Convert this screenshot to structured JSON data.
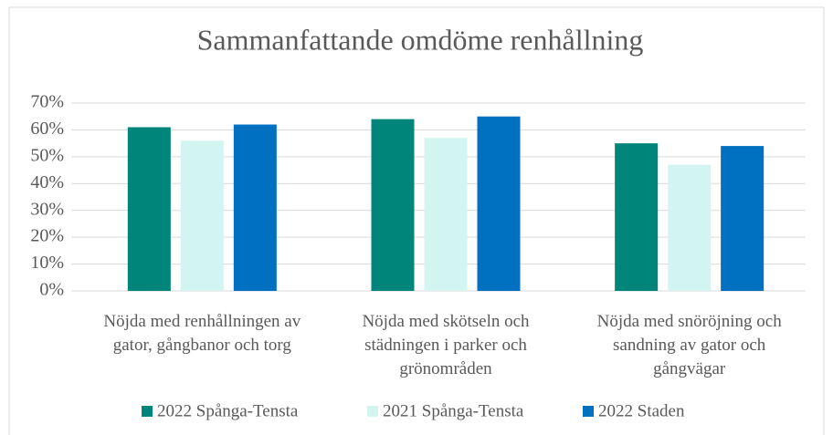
{
  "chart_data": {
    "type": "bar",
    "title": "Sammanfattande omdöme renhållning",
    "categories": [
      "Nöjda med renhållningen av gator, gångbanor och torg",
      "Nöjda med skötseln och städningen i parker och grönområden",
      "Nöjda med snöröjning och sandning av gator och gångvägar"
    ],
    "series": [
      {
        "name": "2022 Spånga-Tensta",
        "color": "#00857a",
        "values": [
          61,
          64,
          55
        ]
      },
      {
        "name": "2021 Spånga-Tensta",
        "color": "#d3f5f1",
        "values": [
          56,
          57,
          47
        ]
      },
      {
        "name": "2022 Staden",
        "color": "#0070c0",
        "values": [
          62,
          65,
          54
        ]
      }
    ],
    "ylim": [
      0,
      70
    ],
    "yticks": [
      {
        "value": 0,
        "label": "0%"
      },
      {
        "value": 10,
        "label": "10%"
      },
      {
        "value": 20,
        "label": "20%"
      },
      {
        "value": 30,
        "label": "30%"
      },
      {
        "value": 40,
        "label": "40%"
      },
      {
        "value": 50,
        "label": "50%"
      },
      {
        "value": 60,
        "label": "60%"
      },
      {
        "value": 70,
        "label": "70%"
      }
    ],
    "grid": true,
    "legend": "bottom"
  }
}
